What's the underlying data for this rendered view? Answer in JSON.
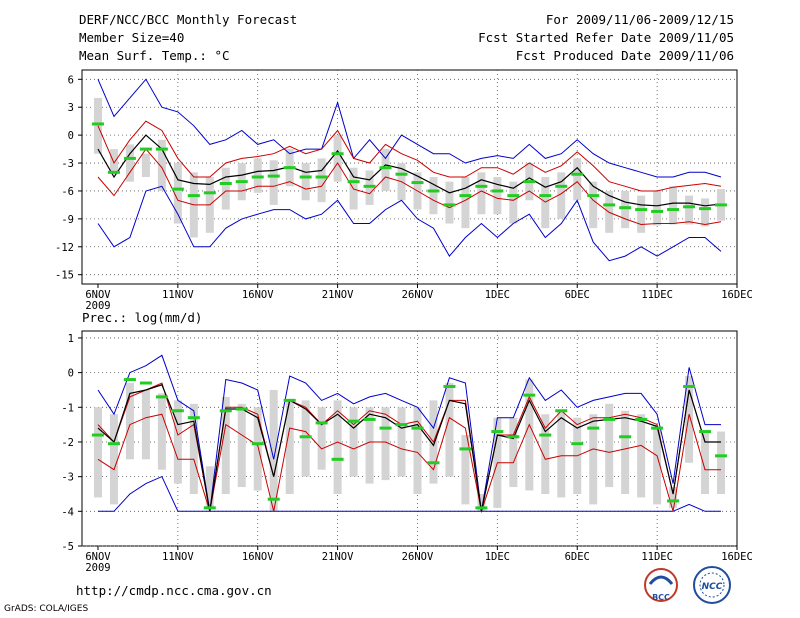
{
  "header": {
    "title": "DERF/NCC/BCC Monthly Forecast",
    "member_size": "Member Size=40",
    "variable": "Mean Surf. Temp.: °C",
    "period": "For 2009/11/06-2009/12/15",
    "start_date": "Fcst Started Refer Date 2009/11/05",
    "produced_date": "Fcst Produced Date 2009/11/06"
  },
  "footer": {
    "url": "http://cmdp.ncc.cma.gov.cn",
    "credit": "GrADS: COLA/IGES",
    "logo_bcc": "BCC",
    "logo_ncc": "NCC"
  },
  "colors": {
    "mean": "#000000",
    "spread": "#cc0000",
    "range": "#0000cc",
    "box": "#d4d4d4",
    "median": "#22cc22",
    "grid": "#000000"
  },
  "chart_data": [
    {
      "type": "line",
      "title": "Mean Surf. Temp.: °C",
      "x_days": [
        1,
        2,
        3,
        4,
        5,
        6,
        7,
        8,
        9,
        10,
        11,
        12,
        13,
        14,
        15,
        16,
        17,
        18,
        19,
        20,
        21,
        22,
        23,
        24,
        25,
        26,
        27,
        28,
        29,
        30,
        31,
        32,
        33,
        34,
        35,
        36,
        37,
        38,
        39,
        40
      ],
      "x_ticks": [
        "6NOV",
        "11NOV",
        "16NOV",
        "21NOV",
        "26NOV",
        "1DEC",
        "6DEC",
        "11DEC",
        "16DEC"
      ],
      "x_tick_days": [
        1,
        6,
        11,
        16,
        21,
        26,
        31,
        36,
        41
      ],
      "year_label": "2009",
      "y_ticks": [
        "6",
        "3",
        "0",
        "-3",
        "-6",
        "-9",
        "-12",
        "-15"
      ],
      "ylim": [
        -16,
        7
      ],
      "series": [
        {
          "name": "max",
          "values": [
            6,
            2,
            4,
            6,
            3,
            2.5,
            1,
            -1,
            -0.5,
            0.5,
            -1,
            -0.5,
            -2,
            -1.5,
            -1.5,
            3.5,
            -2.5,
            -0.5,
            -2.5,
            0,
            -1,
            -2,
            -2,
            -3,
            -2.5,
            -2.2,
            -2.5,
            -1,
            -2.5,
            -2,
            -0.5,
            -2,
            -3,
            -3.5,
            -4,
            -4.5,
            -4.5,
            -4,
            -4,
            -4.5
          ]
        },
        {
          "name": "upper",
          "values": [
            1,
            -3,
            -0.5,
            1.5,
            0.5,
            -2.5,
            -4.5,
            -4.5,
            -3,
            -2.5,
            -2.3,
            -2,
            -1.2,
            -2,
            -1.5,
            0.5,
            -2.5,
            -3,
            -1,
            -2,
            -2.7,
            -4,
            -4.5,
            -4.5,
            -3.5,
            -3.5,
            -4.2,
            -3,
            -4,
            -3.3,
            -1.8,
            -3.3,
            -5,
            -5.5,
            -6,
            -6,
            -5.6,
            -5.4,
            -5.2,
            -5.5
          ]
        },
        {
          "name": "mean",
          "values": [
            -1.5,
            -4.5,
            -2,
            0,
            -1.5,
            -4.8,
            -5.2,
            -5.3,
            -4.5,
            -4.3,
            -3.9,
            -3.8,
            -3.4,
            -4,
            -3.8,
            -1.7,
            -4.5,
            -4.8,
            -3.2,
            -3.6,
            -4.4,
            -5.3,
            -6.2,
            -5.7,
            -4.8,
            -5.3,
            -5.7,
            -4.6,
            -5.6,
            -5,
            -3.5,
            -5.5,
            -6.5,
            -7.2,
            -7.5,
            -7.6,
            -7.3,
            -7.3,
            -7.6,
            -7.4
          ]
        },
        {
          "name": "lower",
          "values": [
            -4.5,
            -6.5,
            -4,
            -1.5,
            -3.5,
            -7,
            -7.5,
            -7.5,
            -6,
            -6,
            -5.5,
            -5.5,
            -5,
            -5.8,
            -5.5,
            -3,
            -5.8,
            -6.3,
            -4.5,
            -5,
            -6,
            -7,
            -7.8,
            -7,
            -6,
            -6.8,
            -7,
            -6,
            -7.2,
            -6.3,
            -5,
            -7,
            -8.3,
            -9,
            -9.6,
            -9.5,
            -9.5,
            -9.3,
            -9.6,
            -9.3
          ]
        },
        {
          "name": "min",
          "values": [
            -9.5,
            -12,
            -11,
            -6,
            -5.5,
            -8.5,
            -12,
            -12,
            -10,
            -9,
            -8.5,
            -8,
            -8,
            -9,
            -8.5,
            -7,
            -9.5,
            -9.5,
            -8,
            -7,
            -9,
            -10,
            -13,
            -11,
            -9.5,
            -11,
            -9.5,
            -8.5,
            -11,
            -9.5,
            -7,
            -11.5,
            -13.5,
            -13,
            -12,
            -13,
            -12,
            -11,
            -11,
            -12.5
          ]
        },
        {
          "name": "box_high",
          "values": [
            4,
            -1.5,
            -1,
            -2,
            -0.5,
            -3,
            -4,
            -4.5,
            -3.5,
            -3,
            -2.5,
            -2.7,
            -1.5,
            -3,
            -2.5,
            0,
            -3.5,
            -3.8,
            -1.5,
            -3,
            -4,
            -4.5,
            -5,
            -4.5,
            -4,
            -4.5,
            -5,
            -3,
            -4.5,
            -4,
            -2.5,
            -5,
            -6,
            -6,
            -6.5,
            -6,
            -5.5,
            -6.5,
            -6.8,
            -5.8
          ]
        },
        {
          "name": "box_low",
          "values": [
            -2,
            -4,
            -5,
            -4.5,
            -6,
            -9.5,
            -11,
            -10.5,
            -8,
            -7,
            -6.2,
            -7.5,
            -5.5,
            -7,
            -7.2,
            -5,
            -8,
            -7.5,
            -6,
            -7,
            -8,
            -8.5,
            -9.5,
            -10,
            -8.5,
            -8.5,
            -9.5,
            -7,
            -10,
            -9,
            -7,
            -10,
            -10.5,
            -10,
            -10.5,
            -9.7,
            -9.6,
            -9.6,
            -9.8,
            -9.2
          ]
        },
        {
          "name": "median",
          "values": [
            1.2,
            -4,
            -2.5,
            -1.5,
            -1.5,
            -5.8,
            -6.5,
            -6.2,
            -5.2,
            -5,
            -4.5,
            -4.4,
            -3.5,
            -4.5,
            -4.5,
            -2,
            -5,
            -5.5,
            -3.5,
            -4.2,
            -5.1,
            -6,
            -7.5,
            -6.5,
            -5.5,
            -6,
            -6.5,
            -5,
            -6.5,
            -5.5,
            -4.2,
            -6.5,
            -7.5,
            -7.8,
            -8,
            -8.2,
            -8,
            -7.7,
            -7.9,
            -7.5
          ]
        }
      ]
    },
    {
      "type": "line",
      "title": "Prec.: log(mm/d)",
      "x_days": [
        1,
        2,
        3,
        4,
        5,
        6,
        7,
        8,
        9,
        10,
        11,
        12,
        13,
        14,
        15,
        16,
        17,
        18,
        19,
        20,
        21,
        22,
        23,
        24,
        25,
        26,
        27,
        28,
        29,
        30,
        31,
        32,
        33,
        34,
        35,
        36,
        37,
        38,
        39,
        40
      ],
      "x_ticks": [
        "6NOV",
        "11NOV",
        "16NOV",
        "21NOV",
        "26NOV",
        "1DEC",
        "6DEC",
        "11DEC",
        "16DEC"
      ],
      "x_tick_days": [
        1,
        6,
        11,
        16,
        21,
        26,
        31,
        36,
        41
      ],
      "year_label": "2009",
      "y_ticks": [
        "1",
        "0",
        "-1",
        "-2",
        "-3",
        "-4",
        "-5"
      ],
      "ylim": [
        -5,
        1.2
      ],
      "series": [
        {
          "name": "max",
          "values": [
            -0.5,
            -1.2,
            0,
            0.2,
            0.5,
            -0.8,
            -1.1,
            -4,
            -0.2,
            -0.3,
            -0.5,
            -2.5,
            -0.1,
            -0.3,
            -0.8,
            -0.6,
            -0.9,
            -0.7,
            -0.6,
            -0.8,
            -1,
            -1.6,
            -0.15,
            -0.3,
            -4,
            -1.3,
            -1.3,
            -0.15,
            -0.8,
            -0.5,
            -1,
            -0.8,
            -0.7,
            -0.6,
            -0.6,
            -1.2,
            -3.2,
            0.15,
            -1.5,
            -1.5
          ]
        },
        {
          "name": "upper",
          "values": [
            -1.5,
            -2,
            -0.7,
            -0.5,
            -0.3,
            -1.8,
            -1.5,
            -4,
            -1,
            -1,
            -1.2,
            -3,
            -0.8,
            -1,
            -1.5,
            -1.1,
            -1.5,
            -1.1,
            -1.2,
            -1.5,
            -1.4,
            -2,
            -0.8,
            -0.8,
            -4,
            -1.8,
            -1.8,
            -0.7,
            -1.6,
            -1.1,
            -1.5,
            -1.3,
            -1.3,
            -1.2,
            -1.3,
            -1.5,
            -3.5,
            -0.5,
            -2,
            -2
          ]
        },
        {
          "name": "mean",
          "values": [
            -1.6,
            -2,
            -0.6,
            -0.5,
            -0.35,
            -1.5,
            -1.4,
            -4,
            -1.05,
            -1.05,
            -1.3,
            -3,
            -0.8,
            -1.05,
            -1.5,
            -1.2,
            -1.6,
            -1.2,
            -1.3,
            -1.6,
            -1.5,
            -2.1,
            -0.8,
            -0.9,
            -4,
            -1.8,
            -1.9,
            -0.8,
            -1.7,
            -1.3,
            -1.6,
            -1.4,
            -1.35,
            -1.3,
            -1.4,
            -1.55,
            -3.5,
            -0.5,
            -2,
            -2
          ]
        },
        {
          "name": "lower",
          "values": [
            -2.5,
            -2.8,
            -1.5,
            -1.3,
            -1.2,
            -2.5,
            -2.5,
            -4,
            -1.5,
            -1.8,
            -2.1,
            -4,
            -1.6,
            -1.7,
            -2.2,
            -2,
            -2.2,
            -2,
            -2,
            -2.2,
            -2.3,
            -2.8,
            -1.3,
            -1.6,
            -4,
            -2.6,
            -2.6,
            -1.5,
            -2.5,
            -2.4,
            -2.4,
            -2.2,
            -2.3,
            -2.2,
            -2.1,
            -2.4,
            -4,
            -1.2,
            -2.8,
            -2.8
          ]
        },
        {
          "name": "min",
          "values": [
            -4,
            -4,
            -3.5,
            -3.2,
            -3,
            -4,
            -4,
            -4,
            -4,
            -4,
            -4,
            -4,
            -4,
            -4,
            -4,
            -4,
            -4,
            -4,
            -4,
            -4,
            -4,
            -4,
            -4,
            -4,
            -4,
            -4,
            -4,
            -4,
            -4,
            -4,
            -4,
            -4,
            -4,
            -4,
            -4,
            -4,
            -4,
            -3.8,
            -4,
            -4
          ]
        },
        {
          "name": "box_high",
          "values": [
            -1,
            -1.2,
            -0.3,
            -0.5,
            -0.6,
            -0.8,
            -0.9,
            -2.7,
            -0.7,
            -0.9,
            -1,
            -0.5,
            -0.8,
            -0.8,
            -1,
            -0.8,
            -1,
            -1,
            -1,
            -1,
            -1,
            -0.8,
            -0.3,
            -1.8,
            -3.5,
            -1.3,
            -1.3,
            -0.2,
            -1.2,
            -1.1,
            -1.3,
            -1.2,
            -0.9,
            -1.1,
            -1.2,
            -1.6,
            -3.3,
            -0.1,
            -1.7,
            -1.7
          ]
        },
        {
          "name": "box_low",
          "values": [
            -3.6,
            -3.8,
            -2.5,
            -2.5,
            -2.8,
            -3.2,
            -3.5,
            -3.9,
            -3.5,
            -3.3,
            -3.4,
            -4,
            -3.5,
            -3,
            -2.8,
            -3.5,
            -3,
            -3.2,
            -3.1,
            -3,
            -3.5,
            -3.2,
            -3,
            -3.8,
            -4,
            -3.9,
            -3.3,
            -3.4,
            -3.5,
            -3.6,
            -3.5,
            -3.8,
            -3.3,
            -3.5,
            -3.6,
            -3.8,
            -3.9,
            -2.6,
            -3.5,
            -3.5
          ]
        },
        {
          "name": "median",
          "values": [
            -1.8,
            -2.05,
            -0.2,
            -0.3,
            -0.7,
            -1.1,
            -1.3,
            -3.9,
            -1.1,
            -1.05,
            -2.05,
            -3.65,
            -0.8,
            -1.85,
            -1.45,
            -2.5,
            -1.4,
            -1.35,
            -1.6,
            -1.5,
            -1.6,
            -2.6,
            -0.4,
            -2.2,
            -3.9,
            -1.7,
            -1.85,
            -0.65,
            -1.8,
            -1.1,
            -2.05,
            -1.6,
            -1.35,
            -1.85,
            -1.35,
            -1.6,
            -3.7,
            -0.4,
            -1.7,
            -2.4
          ]
        }
      ]
    }
  ]
}
